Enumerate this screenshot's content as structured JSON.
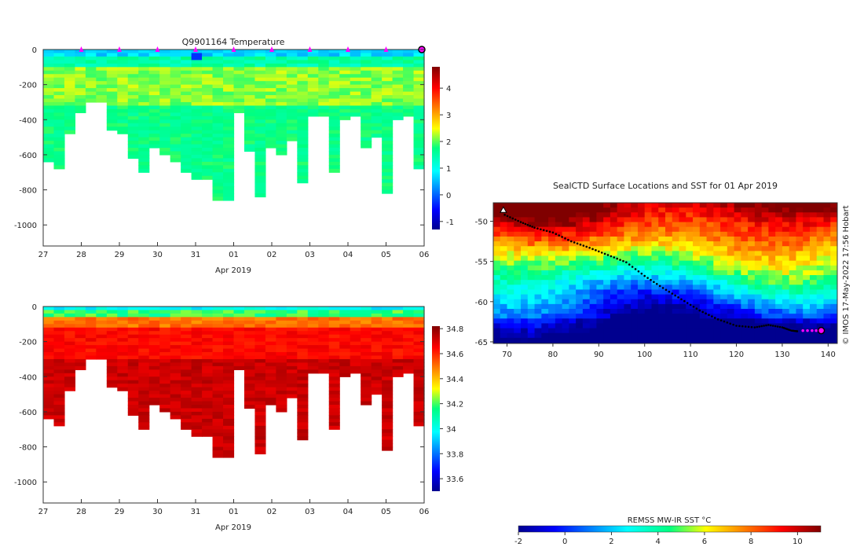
{
  "chart_data": [
    {
      "type": "heatmap",
      "title": "Q9901164  Temperature",
      "xlabel": "Apr 2019",
      "ylabel": "",
      "x_tick_labels": [
        "27",
        "28",
        "29",
        "30",
        "31",
        "01",
        "02",
        "03",
        "04",
        "05",
        "06"
      ],
      "y_tick_labels": [
        "0",
        "-200",
        "-400",
        "-600",
        "-800",
        "-1000"
      ],
      "ylim": [
        -1120,
        0
      ],
      "colorbar": {
        "min": -1.3,
        "max": 4.8,
        "ticks": [
          "-1",
          "0",
          "1",
          "2",
          "3",
          "4"
        ]
      },
      "profile_bottom_depths": [
        640,
        680,
        470,
        360,
        300,
        300,
        450,
        470,
        610,
        700,
        560,
        590,
        630,
        690,
        730,
        730,
        850,
        850,
        360,
        580,
        830,
        560,
        600,
        520,
        750,
        380,
        380,
        690,
        400,
        370,
        550,
        490,
        820,
        390,
        380,
        680
      ],
      "surface_temp": 0.3,
      "upper_temp": 1.8,
      "deep_temp": 1.7,
      "surface_markers_days": [
        1,
        2,
        3,
        4,
        5,
        6,
        7,
        8,
        9
      ]
    },
    {
      "type": "heatmap",
      "title": "",
      "xlabel": "Apr 2019",
      "ylabel": "",
      "x_tick_labels": [
        "27",
        "28",
        "29",
        "30",
        "31",
        "01",
        "02",
        "03",
        "04",
        "05",
        "06"
      ],
      "y_tick_labels": [
        "0",
        "-200",
        "-400",
        "-600",
        "-800",
        "-1000"
      ],
      "ylim": [
        -1120,
        0
      ],
      "colorbar": {
        "min": 33.5,
        "max": 34.82,
        "ticks": [
          "33.6",
          "33.8",
          "34",
          "34.2",
          "34.4",
          "34.6",
          "34.8"
        ]
      },
      "surface_salinity": 34.05,
      "deep_salinity": 34.72
    },
    {
      "type": "heatmap",
      "title": "SealCTD Surface Locations and SST for 01 Apr 2019",
      "xlabel": "",
      "ylabel": "",
      "x_tick_labels": [
        "70",
        "80",
        "90",
        "100",
        "110",
        "120",
        "130",
        "140"
      ],
      "y_tick_labels": [
        "-50",
        "-55",
        "-60",
        "-65"
      ],
      "xlim": [
        67,
        142
      ],
      "ylim": [
        -65.2,
        -47.7
      ],
      "track": [
        [
          69.5,
          -49.2
        ],
        [
          73,
          -50.1
        ],
        [
          76,
          -50.8
        ],
        [
          80,
          -51.4
        ],
        [
          84,
          -52.5
        ],
        [
          88,
          -53.3
        ],
        [
          92,
          -54.2
        ],
        [
          96,
          -55.1
        ],
        [
          100,
          -56.8
        ],
        [
          104,
          -58.3
        ],
        [
          108,
          -59.7
        ],
        [
          112,
          -61.1
        ],
        [
          116,
          -62.2
        ],
        [
          120,
          -63.0
        ],
        [
          124,
          -63.2
        ],
        [
          127,
          -62.9
        ],
        [
          130,
          -63.2
        ],
        [
          132,
          -63.6
        ],
        [
          133.5,
          -63.7
        ]
      ],
      "track_points_latest": [
        [
          134.5,
          -63.6
        ],
        [
          135.5,
          -63.6
        ],
        [
          136.5,
          -63.6
        ],
        [
          137.4,
          -63.6
        ]
      ],
      "current_position": [
        138.5,
        -63.6
      ],
      "credit": "© IMOS 17-May-2022 17:56 Hobart",
      "colorbar": {
        "label": "REMSS MW-IR SST °C",
        "min": -2,
        "max": 11,
        "ticks": [
          "-2",
          "0",
          "2",
          "4",
          "6",
          "8",
          "10"
        ]
      }
    }
  ]
}
